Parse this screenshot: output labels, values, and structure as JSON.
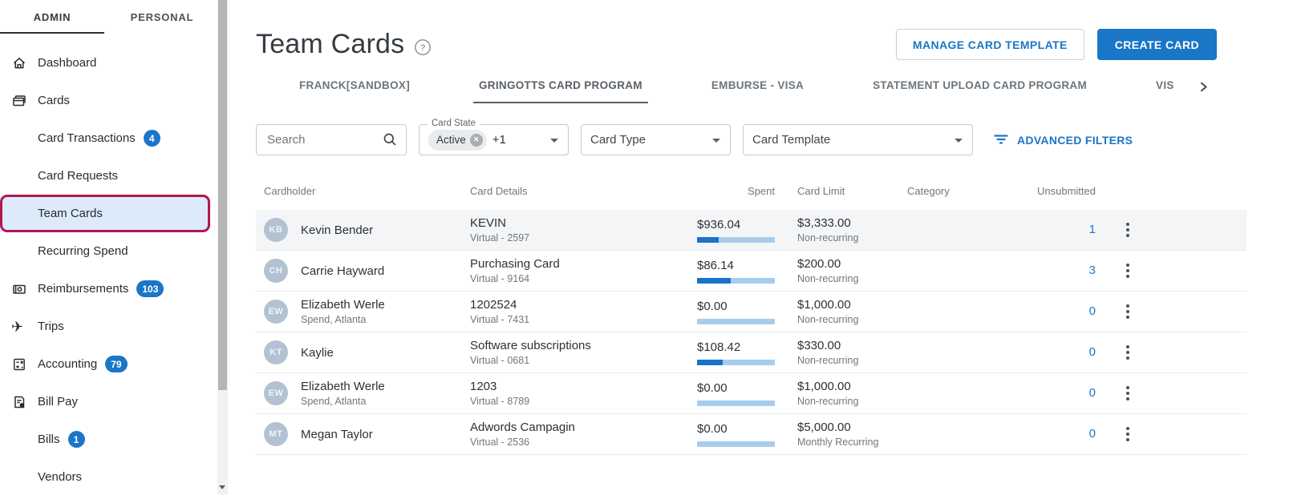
{
  "colors": {
    "accent": "#1a76c7",
    "progress_fill": "#1a73c7",
    "progress_track": "#a8cdec",
    "selected_item_border": "#b2174f",
    "selected_item_bg": "#ddeaf9"
  },
  "sidebar": {
    "tabs": [
      {
        "label": "ADMIN",
        "active": true
      },
      {
        "label": "PERSONAL",
        "active": false
      }
    ],
    "items": [
      {
        "label": "Dashboard",
        "icon": "home-icon"
      },
      {
        "label": "Cards",
        "icon": "cards-icon"
      },
      {
        "label": "Card Transactions",
        "badge": "4"
      },
      {
        "label": "Card Requests"
      },
      {
        "label": "Team Cards",
        "selected": true
      },
      {
        "label": "Recurring Spend"
      },
      {
        "label": "Reimbursements",
        "icon": "reimbursements-icon",
        "badge": "103"
      },
      {
        "label": "Trips",
        "icon": "plane-icon"
      },
      {
        "label": "Accounting",
        "icon": "accounting-icon",
        "badge": "79"
      },
      {
        "label": "Bill Pay",
        "icon": "billpay-icon"
      },
      {
        "label": "Bills",
        "badge": "1"
      },
      {
        "label": "Vendors"
      }
    ]
  },
  "header": {
    "title": "Team Cards",
    "manage_button": "MANAGE CARD TEMPLATE",
    "create_button": "CREATE CARD"
  },
  "program_tabs": [
    {
      "label": "FRANCK[SANDBOX]"
    },
    {
      "label": "GRINGOTTS CARD PROGRAM",
      "active": true
    },
    {
      "label": "EMBURSE - VISA"
    },
    {
      "label": "STATEMENT UPLOAD CARD PROGRAM"
    },
    {
      "label": "VIS"
    }
  ],
  "filters": {
    "search_placeholder": "Search",
    "card_state": {
      "label": "Card State",
      "chip": "Active",
      "more": "+1"
    },
    "card_type_label": "Card Type",
    "card_template_label": "Card Template",
    "advanced_label": "ADVANCED FILTERS"
  },
  "table": {
    "headers": [
      "Cardholder",
      "Card Details",
      "Spent",
      "Card Limit",
      "Category",
      "Unsubmitted"
    ],
    "rows": [
      {
        "initials": "KB",
        "name": "Kevin Bender",
        "subtitle": "",
        "card_name": "KEVIN",
        "card_info": "Virtual - 2597",
        "spent": "$936.04",
        "spent_pct": 28,
        "limit": "$3,333.00",
        "limit_type": "Non-recurring",
        "category": "",
        "unsubmitted": "1",
        "highlighted": true
      },
      {
        "initials": "CH",
        "name": "Carrie Hayward",
        "subtitle": "",
        "card_name": "Purchasing Card",
        "card_info": "Virtual - 9164",
        "spent": "$86.14",
        "spent_pct": 43,
        "limit": "$200.00",
        "limit_type": "Non-recurring",
        "category": "",
        "unsubmitted": "3"
      },
      {
        "initials": "EW",
        "name": "Elizabeth Werle",
        "subtitle": "Spend, Atlanta",
        "card_name": "1202524",
        "card_info": "Virtual - 7431",
        "spent": "$0.00",
        "spent_pct": 0,
        "limit": "$1,000.00",
        "limit_type": "Non-recurring",
        "category": "",
        "unsubmitted": "0"
      },
      {
        "initials": "KT",
        "name": "Kaylie",
        "subtitle": "",
        "card_name": "Software subscriptions",
        "card_info": "Virtual - 0681",
        "spent": "$108.42",
        "spent_pct": 33,
        "limit": "$330.00",
        "limit_type": "Non-recurring",
        "category": "",
        "unsubmitted": "0"
      },
      {
        "initials": "EW",
        "name": "Elizabeth Werle",
        "subtitle": "Spend, Atlanta",
        "card_name": "1203",
        "card_info": "Virtual - 8789",
        "spent": "$0.00",
        "spent_pct": 0,
        "limit": "$1,000.00",
        "limit_type": "Non-recurring",
        "category": "",
        "unsubmitted": "0"
      },
      {
        "initials": "MT",
        "name": "Megan Taylor",
        "subtitle": "",
        "card_name": "Adwords Campagin",
        "card_info": "Virtual - 2536",
        "spent": "$0.00",
        "spent_pct": 0,
        "limit": "$5,000.00",
        "limit_type": "Monthly Recurring",
        "category": "",
        "unsubmitted": "0"
      }
    ]
  }
}
